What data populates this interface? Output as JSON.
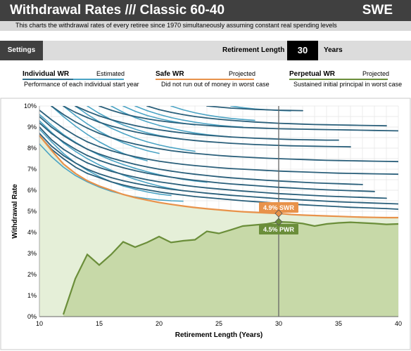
{
  "header": {
    "title": "Withdrawal Rates /// Classic 60-40",
    "country": "SWE",
    "subtitle": "This charts the withdrawal rates of every retiree since 1970 simultaneously assuming constant real spending levels"
  },
  "settings": {
    "button_label": "Settings",
    "retirement_length_label": "Retirement Length",
    "retirement_length_value": "30",
    "retirement_length_unit": "Years"
  },
  "legend": {
    "individual": {
      "title": "Individual WR",
      "sub": "Estimated",
      "desc": "Performance of each individual start year",
      "color": "#2e6d8a",
      "color2": "#4aa3c4"
    },
    "safe": {
      "title": "Safe WR",
      "sub": "Projected",
      "desc": "Did not run out of money in worst case",
      "color": "#e8924a"
    },
    "perpetual": {
      "title": "Perpetual WR",
      "sub": "Projected",
      "desc": "Sustained initial principal in worst case",
      "color": "#6b8e3a"
    }
  },
  "chart_data": {
    "type": "line",
    "xlabel": "Retirement Length (Years)",
    "ylabel": "Withdrawal Rate",
    "xlim": [
      10,
      40
    ],
    "ylim": [
      0,
      10
    ],
    "xticks": [
      10,
      15,
      20,
      25,
      30,
      35,
      40
    ],
    "yticks": [
      "0%",
      "1%",
      "2%",
      "3%",
      "4%",
      "5%",
      "6%",
      "7%",
      "8%",
      "9%",
      "10%"
    ],
    "grid": true,
    "marker_x": 30,
    "annotations": [
      {
        "text": "4.9% SWR",
        "x": 30,
        "y": 4.9,
        "color": "#e8924a"
      },
      {
        "text": "4.5% PWR",
        "x": 30,
        "y": 4.5,
        "color": "#6b8e3a"
      }
    ],
    "series": [
      {
        "name": "Safe WR",
        "color": "#e8924a",
        "x": [
          10,
          11,
          12,
          13,
          14,
          15,
          16,
          17,
          18,
          19,
          20,
          21,
          22,
          23,
          24,
          25,
          26,
          27,
          28,
          29,
          30,
          31,
          32,
          33,
          34,
          35,
          36,
          37,
          38,
          39,
          40
        ],
        "y": [
          8.6,
          7.9,
          7.25,
          6.8,
          6.45,
          6.2,
          6.0,
          5.8,
          5.65,
          5.53,
          5.42,
          5.33,
          5.25,
          5.18,
          5.12,
          5.07,
          5.02,
          4.98,
          4.95,
          4.92,
          4.9,
          4.85,
          4.82,
          4.8,
          4.78,
          4.76,
          4.74,
          4.72,
          4.71,
          4.7,
          4.7
        ]
      },
      {
        "name": "Perpetual WR",
        "color": "#6b8e3a",
        "x": [
          12,
          13,
          14,
          15,
          16,
          17,
          18,
          19,
          20,
          21,
          22,
          23,
          24,
          25,
          26,
          27,
          28,
          29,
          30,
          31,
          32,
          33,
          34,
          35,
          36,
          37,
          38,
          39,
          40
        ],
        "y": [
          0.1,
          1.8,
          2.95,
          2.45,
          2.95,
          3.55,
          3.3,
          3.52,
          3.8,
          3.52,
          3.6,
          3.65,
          4.05,
          3.95,
          4.12,
          4.3,
          4.35,
          4.4,
          4.5,
          4.48,
          4.42,
          4.3,
          4.4,
          4.45,
          4.48,
          4.45,
          4.42,
          4.38,
          4.4
        ]
      }
    ],
    "individual_series": [
      {
        "x0": 10,
        "x1": 40,
        "y": [
          8.6,
          7.95,
          7.5,
          7.1,
          6.8,
          6.6,
          6.4,
          6.25,
          6.12,
          6.02,
          5.92,
          5.84,
          5.77,
          5.7,
          5.65,
          5.6,
          5.55,
          5.5,
          5.46,
          5.42,
          5.38,
          5.34,
          5.31,
          5.28,
          5.25,
          5.22,
          5.19,
          5.17,
          5.15,
          5.13,
          5.1
        ]
      },
      {
        "x0": 10,
        "x1": 40,
        "y": [
          8.7,
          8.1,
          7.65,
          7.3,
          7.0,
          6.78,
          6.6,
          6.45,
          6.33,
          6.22,
          6.13,
          6.05,
          5.98,
          5.92,
          5.86,
          5.81,
          5.76,
          5.72,
          5.68,
          5.64,
          5.6,
          5.57,
          5.54,
          5.51,
          5.48,
          5.45,
          5.43,
          5.41,
          5.39,
          5.37,
          5.35
        ]
      },
      {
        "x0": 10,
        "x1": 39,
        "y": [
          9.0,
          8.4,
          7.95,
          7.6,
          7.3,
          7.08,
          6.9,
          6.75,
          6.62,
          6.5,
          6.4,
          6.32,
          6.24,
          6.17,
          6.11,
          6.06,
          6.01,
          5.96,
          5.92,
          5.88,
          5.84,
          5.81,
          5.78,
          5.75,
          5.72,
          5.7,
          5.68,
          5.66,
          5.64,
          5.62
        ]
      },
      {
        "x0": 10,
        "x1": 38,
        "y": [
          9.2,
          8.7,
          8.3,
          7.95,
          7.65,
          7.42,
          7.23,
          7.07,
          6.93,
          6.81,
          6.71,
          6.62,
          6.54,
          6.47,
          6.41,
          6.35,
          6.3,
          6.26,
          6.22,
          6.18,
          6.14,
          6.11,
          6.08,
          6.05,
          6.02,
          6.0,
          5.98,
          5.96,
          5.94
        ]
      },
      {
        "x0": 10,
        "x1": 37,
        "y": [
          9.5,
          9.0,
          8.6,
          8.25,
          7.95,
          7.72,
          7.53,
          7.37,
          7.23,
          7.11,
          7.0,
          6.91,
          6.83,
          6.76,
          6.7,
          6.64,
          6.59,
          6.55,
          6.51,
          6.47,
          6.44,
          6.41,
          6.38,
          6.35,
          6.33,
          6.31,
          6.29,
          6.27
        ]
      },
      {
        "x0": 10,
        "x1": 40,
        "y": [
          9.8,
          9.35,
          8.95,
          8.6,
          8.3,
          8.07,
          7.88,
          7.72,
          7.59,
          7.48,
          7.38,
          7.3,
          7.23,
          7.17,
          7.12,
          7.07,
          7.03,
          7.0,
          6.97,
          6.94,
          6.91,
          6.89,
          6.87,
          6.85,
          6.83,
          6.81,
          6.8,
          6.79,
          6.78,
          6.77,
          6.76
        ]
      },
      {
        "x0": 11,
        "x1": 40,
        "y": [
          10.0,
          9.6,
          9.25,
          8.95,
          8.7,
          8.5,
          8.33,
          8.19,
          8.07,
          7.97,
          7.88,
          7.81,
          7.75,
          7.7,
          7.65,
          7.61,
          7.58,
          7.55,
          7.52,
          7.5,
          7.48,
          7.46,
          7.44,
          7.42,
          7.41,
          7.4,
          7.39,
          7.38,
          7.37,
          7.36
        ]
      },
      {
        "x0": 12,
        "x1": 36,
        "y": [
          10.0,
          9.7,
          9.45,
          9.23,
          9.05,
          8.9,
          8.77,
          8.66,
          8.57,
          8.49,
          8.42,
          8.36,
          8.31,
          8.27,
          8.23,
          8.2,
          8.17,
          8.15,
          8.13,
          8.11,
          8.1,
          8.09,
          8.08,
          8.07,
          8.06
        ]
      },
      {
        "x0": 13,
        "x1": 35,
        "y": [
          10.0,
          9.75,
          9.53,
          9.35,
          9.2,
          9.07,
          8.96,
          8.87,
          8.79,
          8.72,
          8.66,
          8.61,
          8.57,
          8.53,
          8.5,
          8.47,
          8.45,
          8.43,
          8.41,
          8.4,
          8.39,
          8.38,
          8.38
        ]
      },
      {
        "x0": 15,
        "x1": 40,
        "y": [
          10.0,
          9.8,
          9.63,
          9.5,
          9.39,
          9.3,
          9.23,
          9.17,
          9.12,
          9.08,
          9.04,
          9.01,
          8.98,
          8.96,
          8.94,
          8.92,
          8.91,
          8.9,
          8.89,
          8.88,
          8.87,
          8.86,
          8.85,
          8.84,
          8.83,
          8.82
        ]
      },
      {
        "x0": 19,
        "x1": 39,
        "y": [
          10.0,
          9.83,
          9.7,
          9.59,
          9.5,
          9.43,
          9.37,
          9.32,
          9.28,
          9.24,
          9.21,
          9.18,
          9.16,
          9.14,
          9.12,
          9.11,
          9.1,
          9.09,
          9.08,
          9.07,
          9.06
        ]
      },
      {
        "x0": 24,
        "x1": 32,
        "y": [
          10.0,
          9.95,
          9.9,
          9.87,
          9.84,
          9.82,
          9.8,
          9.79,
          9.78
        ]
      }
    ],
    "individual_short": [
      {
        "x0": 10,
        "x1": 22,
        "y": [
          8.2,
          7.6,
          7.1,
          6.7,
          6.4,
          6.15,
          5.95,
          5.8,
          5.68,
          5.6,
          5.54,
          5.5,
          5.48
        ]
      },
      {
        "x0": 10,
        "x1": 21,
        "y": [
          8.9,
          8.3,
          7.75,
          7.3,
          6.95,
          6.65,
          6.4,
          6.2,
          6.05,
          5.92,
          5.82,
          5.75
        ]
      },
      {
        "x0": 10,
        "x1": 22,
        "y": [
          9.3,
          8.75,
          8.25,
          7.85,
          7.5,
          7.2,
          6.95,
          6.72,
          6.52,
          6.35,
          6.2,
          6.08,
          5.98
        ]
      },
      {
        "x0": 10,
        "x1": 24,
        "y": [
          9.6,
          9.1,
          8.65,
          8.28,
          7.95,
          7.67,
          7.43,
          7.22,
          7.04,
          6.88,
          6.74,
          6.62,
          6.52,
          6.44,
          6.38
        ]
      },
      {
        "x0": 11,
        "x1": 19,
        "y": [
          10.0,
          9.5,
          9.05,
          8.65,
          8.3,
          8.0,
          7.75,
          7.55,
          7.4
        ]
      },
      {
        "x0": 12,
        "x1": 20,
        "y": [
          10.0,
          9.55,
          9.15,
          8.8,
          8.5,
          8.25,
          8.05,
          7.88,
          7.75
        ]
      },
      {
        "x0": 13,
        "x1": 23,
        "y": [
          10.0,
          9.6,
          9.25,
          8.95,
          8.7,
          8.48,
          8.3,
          8.15,
          8.03,
          7.93,
          7.85
        ]
      },
      {
        "x0": 14,
        "x1": 22,
        "y": [
          10.0,
          9.65,
          9.35,
          9.1,
          8.9,
          8.73,
          8.6,
          8.5,
          8.42
        ]
      },
      {
        "x0": 16,
        "x1": 26,
        "y": [
          10.0,
          9.7,
          9.45,
          9.25,
          9.08,
          8.94,
          8.82,
          8.72,
          8.64,
          8.58,
          8.53
        ]
      },
      {
        "x0": 17,
        "x1": 23,
        "y": [
          10.0,
          9.75,
          9.55,
          9.4,
          9.28,
          9.18,
          9.1
        ]
      },
      {
        "x0": 18,
        "x1": 27,
        "y": [
          10.0,
          9.78,
          9.6,
          9.45,
          9.33,
          9.23,
          9.15,
          9.08,
          9.03,
          9.0
        ]
      },
      {
        "x0": 21,
        "x1": 28,
        "y": [
          10.0,
          9.82,
          9.68,
          9.57,
          9.48,
          9.41,
          9.36,
          9.32
        ]
      },
      {
        "x0": 26,
        "x1": 31,
        "y": [
          10.0,
          9.92,
          9.86,
          9.82,
          9.79,
          9.77
        ]
      }
    ]
  }
}
